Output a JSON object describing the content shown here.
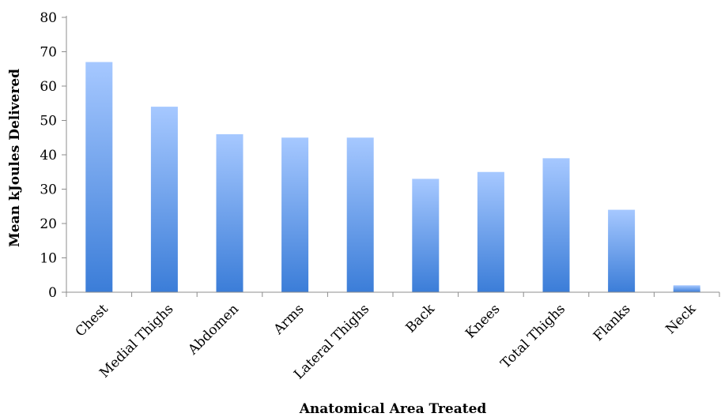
{
  "chart_data": {
    "type": "bar",
    "title": "",
    "xlabel": "Anatomical Area Treated",
    "ylabel": "Mean kJoules Delivered",
    "categories": [
      "Chest",
      "Medial Thighs",
      "Abdomen",
      "Arms",
      "Lateral Thighs",
      "Back",
      "Knees",
      "Total Thighs",
      "Flanks",
      "Neck"
    ],
    "values": [
      67,
      54,
      46,
      45,
      45,
      33,
      35,
      39,
      24,
      2
    ],
    "ylim": [
      0,
      80
    ],
    "yticks": [
      0,
      10,
      20,
      30,
      40,
      50,
      60,
      70,
      80
    ],
    "grid": false,
    "legend": "none",
    "colors": {
      "bar_top": "#a6c8ff",
      "bar_bottom": "#3b7dd8",
      "axis": "#8c8c8c",
      "text": "#000000"
    }
  }
}
